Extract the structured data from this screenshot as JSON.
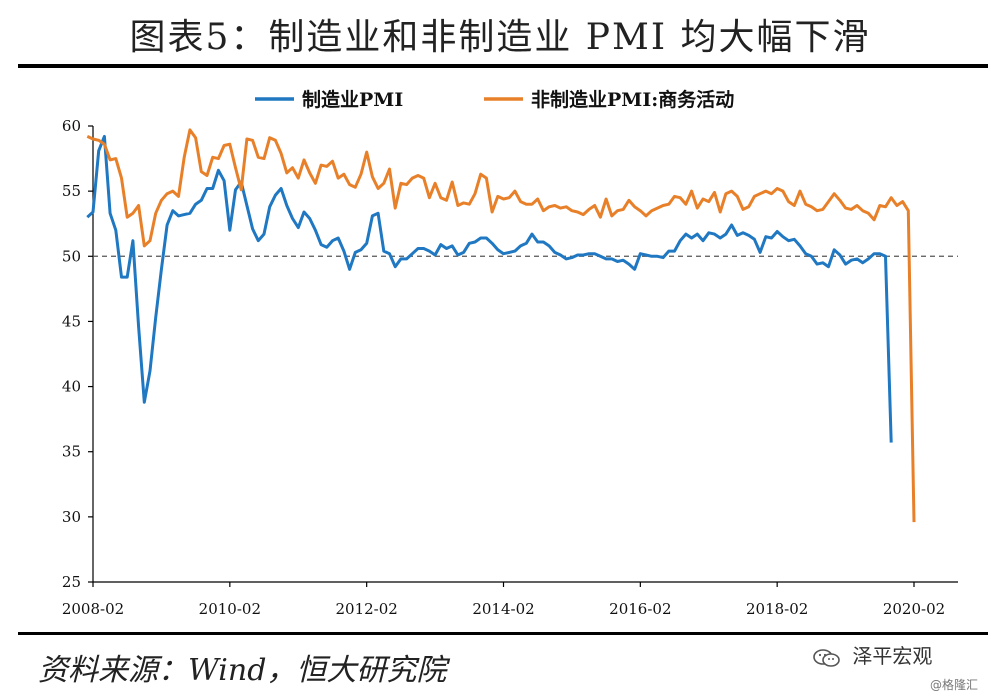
{
  "title": "图表5：制造业和非制造业 PMI 均大幅下滑",
  "source": "资料来源：Wind，恒大研究院",
  "watermark": {
    "text": "泽平宏观",
    "icon": "wechat-icon"
  },
  "credit": "@格隆汇",
  "chart_data": {
    "type": "line",
    "ylim": [
      25,
      60
    ],
    "yticks": [
      25,
      30,
      35,
      40,
      45,
      50,
      55,
      60
    ],
    "xticks": [
      "2008-02",
      "2010-02",
      "2012-02",
      "2014-02",
      "2016-02",
      "2018-02",
      "2020-02"
    ],
    "reference_line": 50,
    "legend_position": "top",
    "series": [
      {
        "name": "制造业PMI",
        "color": "#1f78c1",
        "x_start": "2008-01",
        "values": [
          53.0,
          53.4,
          58.1,
          59.2,
          53.3,
          52.0,
          48.4,
          48.4,
          51.2,
          44.6,
          38.8,
          41.2,
          45.3,
          49.0,
          52.4,
          53.5,
          53.1,
          53.2,
          53.3,
          54.0,
          54.3,
          55.2,
          55.2,
          56.6,
          55.8,
          52.0,
          55.1,
          55.7,
          53.9,
          52.1,
          51.2,
          51.7,
          53.8,
          54.7,
          55.2,
          53.9,
          52.9,
          52.2,
          53.4,
          52.9,
          52.0,
          50.9,
          50.7,
          51.2,
          51.4,
          50.4,
          49.0,
          50.3,
          50.5,
          51.0,
          53.1,
          53.3,
          50.4,
          50.2,
          49.2,
          49.8,
          49.8,
          50.2,
          50.6,
          50.6,
          50.4,
          50.1,
          50.9,
          50.6,
          50.8,
          50.1,
          50.3,
          51.0,
          51.1,
          51.4,
          51.4,
          51.0,
          50.5,
          50.2,
          50.3,
          50.4,
          50.8,
          51.0,
          51.7,
          51.1,
          51.1,
          50.8,
          50.3,
          50.1,
          49.8,
          49.9,
          50.1,
          50.1,
          50.2,
          50.2,
          50.0,
          49.8,
          49.8,
          49.6,
          49.7,
          49.4,
          49.0,
          50.2,
          50.1,
          50.0,
          50.0,
          49.9,
          50.4,
          50.4,
          51.2,
          51.7,
          51.4,
          51.7,
          51.2,
          51.8,
          51.7,
          51.4,
          51.7,
          52.4,
          51.6,
          51.8,
          51.6,
          51.3,
          50.3,
          51.5,
          51.4,
          51.9,
          51.5,
          51.2,
          51.3,
          50.8,
          50.2,
          50.0,
          49.4,
          49.5,
          49.2,
          50.5,
          50.1,
          49.4,
          49.7,
          49.8,
          49.5,
          49.8,
          50.2,
          50.2,
          50.0,
          35.7
        ]
      },
      {
        "name": "非制造业PMI:商务活动",
        "color": "#e8802a",
        "x_start": "2008-01",
        "values": [
          59.2,
          59.0,
          58.9,
          58.6,
          57.4,
          57.5,
          56.0,
          53.0,
          53.3,
          53.9,
          50.8,
          51.2,
          53.3,
          54.3,
          54.8,
          55.0,
          54.6,
          57.6,
          59.7,
          59.1,
          56.5,
          56.2,
          57.6,
          57.5,
          58.5,
          58.6,
          56.8,
          55.1,
          59.0,
          58.9,
          57.6,
          57.5,
          59.1,
          58.9,
          57.9,
          56.4,
          56.8,
          56.0,
          57.4,
          56.4,
          55.6,
          57.0,
          56.9,
          57.3,
          56.0,
          56.3,
          55.5,
          55.3,
          56.3,
          58.0,
          56.1,
          55.2,
          55.6,
          56.7,
          53.7,
          55.6,
          55.5,
          56.0,
          56.2,
          56.0,
          54.5,
          55.6,
          54.5,
          54.3,
          55.7,
          53.9,
          54.1,
          54.0,
          54.8,
          56.3,
          56.0,
          53.4,
          54.6,
          54.4,
          54.5,
          55.0,
          54.2,
          54.0,
          54.0,
          54.4,
          53.5,
          53.8,
          53.9,
          53.7,
          53.8,
          53.5,
          53.4,
          53.2,
          53.6,
          53.9,
          53.0,
          54.4,
          53.1,
          53.5,
          53.6,
          54.3,
          53.8,
          53.5,
          53.1,
          53.5,
          53.7,
          53.9,
          54.0,
          54.6,
          54.5,
          54.0,
          55.0,
          53.7,
          54.4,
          54.2,
          54.9,
          53.4,
          54.8,
          55.0,
          54.6,
          53.6,
          53.8,
          54.6,
          54.8,
          55.0,
          54.8,
          55.2,
          55.0,
          54.2,
          53.9,
          55.0,
          54.0,
          53.8,
          53.5,
          53.6,
          54.2,
          54.8,
          54.3,
          53.7,
          53.6,
          53.9,
          53.5,
          53.3,
          52.8,
          53.9,
          53.8,
          54.5,
          53.9,
          54.2,
          53.5,
          29.6
        ]
      }
    ]
  }
}
